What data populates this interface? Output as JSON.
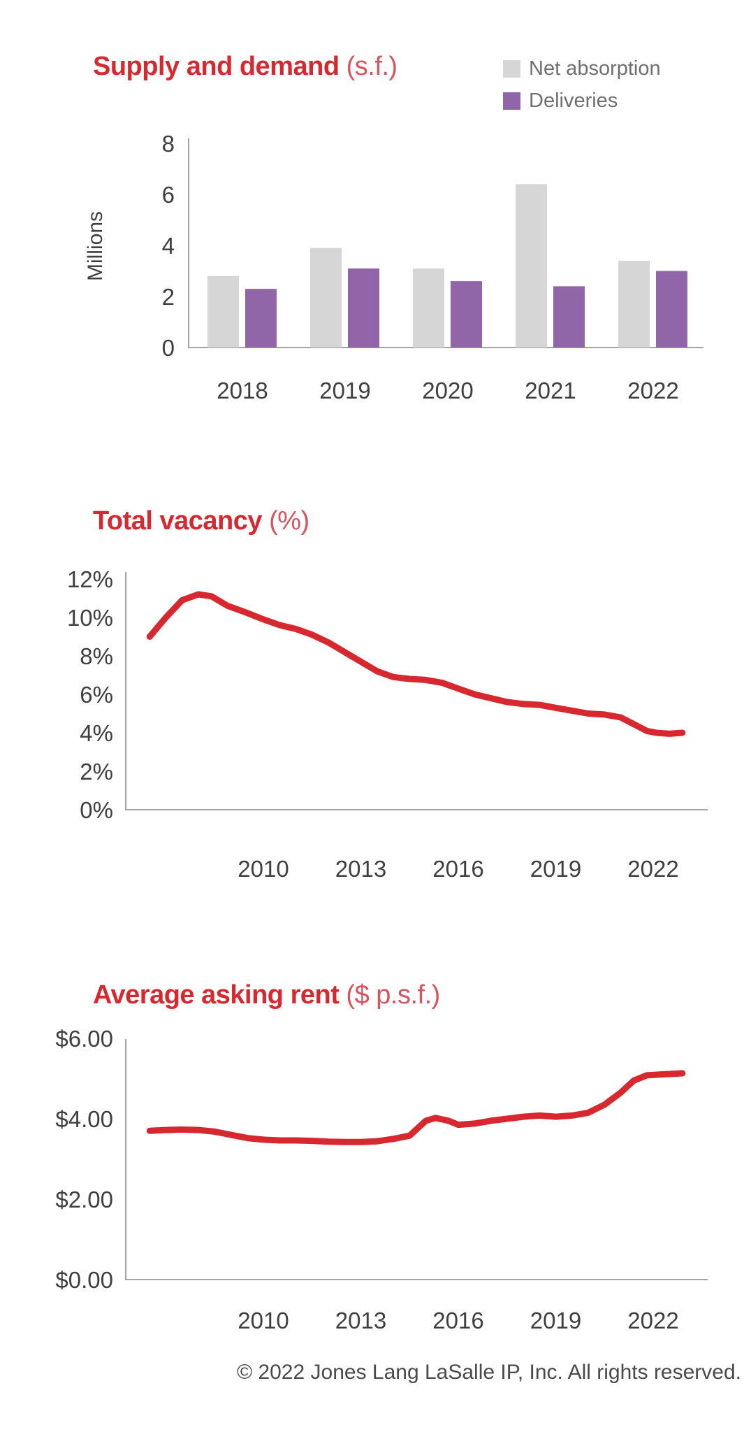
{
  "page": {
    "footer": "© 2022 Jones Lang LaSalle IP, Inc. All rights reserved."
  },
  "colors": {
    "accent_red": "#d7282f",
    "unit_red": "#d4545f",
    "net_absorption_gray": "#d6d6d6",
    "deliveries_purple": "#9166a9",
    "axis_gray": "#a3a3a3",
    "tick_text": "#3f3f3f"
  },
  "charts": [
    {
      "id": "supply-demand",
      "title": "Supply and demand",
      "unit": "(s.f.)",
      "legend": [
        {
          "label": "Net absorption",
          "color": "#d6d6d6"
        },
        {
          "label": "Deliveries",
          "color": "#9166a9"
        }
      ],
      "chart_data": {
        "type": "bar",
        "categories": [
          "2018",
          "2019",
          "2020",
          "2021",
          "2022"
        ],
        "series": [
          {
            "name": "Net absorption",
            "color": "#d6d6d6",
            "values": [
              2.8,
              3.9,
              3.1,
              6.4,
              3.4
            ]
          },
          {
            "name": "Deliveries",
            "color": "#9166a9",
            "values": [
              2.3,
              3.1,
              2.6,
              2.4,
              3.0
            ]
          }
        ],
        "ylabel": "Millions",
        "ylim": [
          0,
          8
        ],
        "yticks": [
          0,
          2,
          4,
          6,
          8
        ],
        "legend_position": "top-right",
        "grid": false
      }
    },
    {
      "id": "total-vacancy",
      "title": "Total vacancy",
      "unit": "(%)",
      "chart_data": {
        "type": "line",
        "color": "#d7282f",
        "x": [
          2006.5,
          2007,
          2007.5,
          2008,
          2008.4,
          2008.9,
          2009.4,
          2010,
          2010.5,
          2011,
          2011.5,
          2012,
          2012.5,
          2013,
          2013.5,
          2014,
          2014.5,
          2015,
          2015.5,
          2016,
          2016.5,
          2017,
          2017.5,
          2018,
          2018.5,
          2019,
          2019.5,
          2020,
          2020.5,
          2021,
          2021.4,
          2021.8,
          2022.1,
          2022.5,
          2022.9
        ],
        "y": [
          9.0,
          10.0,
          10.9,
          11.2,
          11.1,
          10.6,
          10.3,
          9.9,
          9.6,
          9.4,
          9.1,
          8.7,
          8.2,
          7.7,
          7.2,
          6.9,
          6.8,
          6.75,
          6.6,
          6.3,
          6.0,
          5.8,
          5.6,
          5.5,
          5.45,
          5.3,
          5.15,
          5.0,
          4.95,
          4.8,
          4.45,
          4.1,
          4.0,
          3.95,
          4.0
        ],
        "ylim": [
          0,
          12
        ],
        "yticks": [
          0,
          2,
          4,
          6,
          8,
          10,
          12
        ],
        "ytick_labels": [
          "0%",
          "2%",
          "4%",
          "6%",
          "8%",
          "10%",
          "12%"
        ],
        "xticks": [
          2010,
          2013,
          2016,
          2019,
          2022
        ],
        "xtick_labels": [
          "2010",
          "2013",
          "2016",
          "2019",
          "2022"
        ],
        "grid": false
      }
    },
    {
      "id": "average-asking-rent",
      "title": "Average asking rent",
      "unit": "($ p.s.f.)",
      "chart_data": {
        "type": "line",
        "color": "#d7282f",
        "x": [
          2006.5,
          2007,
          2007.5,
          2008,
          2008.5,
          2009,
          2009.5,
          2010,
          2010.5,
          2011,
          2011.5,
          2012,
          2012.5,
          2013,
          2013.5,
          2014,
          2014.5,
          2015,
          2015.3,
          2015.7,
          2016,
          2016.5,
          2017,
          2017.5,
          2018,
          2018.5,
          2019,
          2019.5,
          2020,
          2020.5,
          2021,
          2021.4,
          2021.8,
          2022.2,
          2022.9
        ],
        "y": [
          3.7,
          3.72,
          3.73,
          3.72,
          3.68,
          3.6,
          3.52,
          3.48,
          3.46,
          3.46,
          3.45,
          3.43,
          3.42,
          3.42,
          3.44,
          3.5,
          3.58,
          3.95,
          4.02,
          3.95,
          3.85,
          3.88,
          3.95,
          4.0,
          4.05,
          4.08,
          4.05,
          4.08,
          4.15,
          4.35,
          4.65,
          4.95,
          5.08,
          5.1,
          5.13
        ],
        "ylim": [
          0,
          6
        ],
        "yticks": [
          0,
          2,
          4,
          6
        ],
        "ytick_labels": [
          "$0.00",
          "$2.00",
          "$4.00",
          "$6.00"
        ],
        "xticks": [
          2010,
          2013,
          2016,
          2019,
          2022
        ],
        "xtick_labels": [
          "2010",
          "2013",
          "2016",
          "2019",
          "2022"
        ],
        "grid": false
      }
    }
  ]
}
